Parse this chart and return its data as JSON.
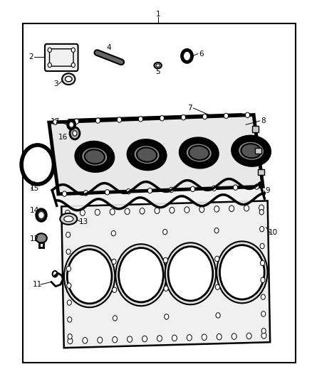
{
  "bg_color": "#ffffff",
  "line_color": "#000000",
  "fig_width": 4.38,
  "fig_height": 5.33,
  "outer_border": [
    0.07,
    0.04,
    0.88,
    0.9
  ]
}
